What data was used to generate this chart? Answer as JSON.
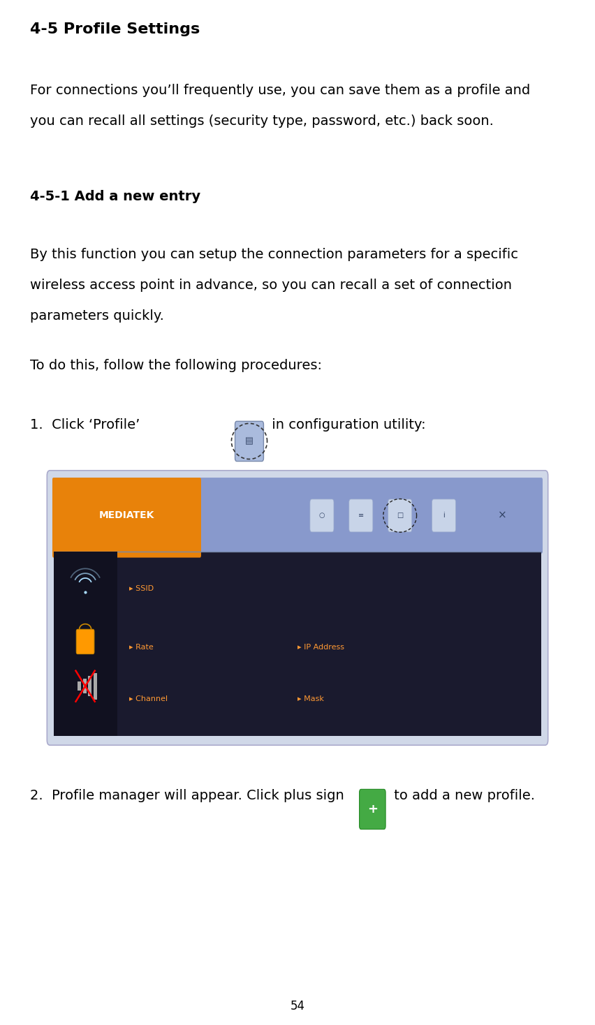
{
  "bg_color": "#ffffff",
  "title": "4-5 Profile Settings",
  "title_size": 16,
  "para1_line1": "For connections you’ll frequently use, you can save them as a profile and",
  "para1_line2": "you can recall all settings (security type, password, etc.) back soon.",
  "para1_size": 14,
  "subtitle": "4-5-1 Add a new entry",
  "subtitle_size": 14,
  "para2_line1": "By this function you can setup the connection parameters for a specific",
  "para2_line2": "wireless access point in advance, so you can recall a set of connection",
  "para2_line3": "parameters quickly.",
  "para2_size": 14,
  "para3": "To do this, follow the following procedures:",
  "para3_size": 14,
  "step1_before": "1.  Click ‘Profile’",
  "step1_after": " in configuration utility:",
  "step2_before": "2.  Profile manager will appear. Click plus sign",
  "step2_after": " to add a new profile.",
  "step_size": 14,
  "page_number": "54",
  "page_number_size": 12,
  "lm": 0.05,
  "text_color": "#000000",
  "mediatek_orange": "#E8820A",
  "header_blue": "#8899cc",
  "body_dark": "#1a1a2e",
  "sidebar_dark": "#111120",
  "label_orange": "#ff9933",
  "border_color": "#aaaacc",
  "outer_bg": "#d0d8e8"
}
